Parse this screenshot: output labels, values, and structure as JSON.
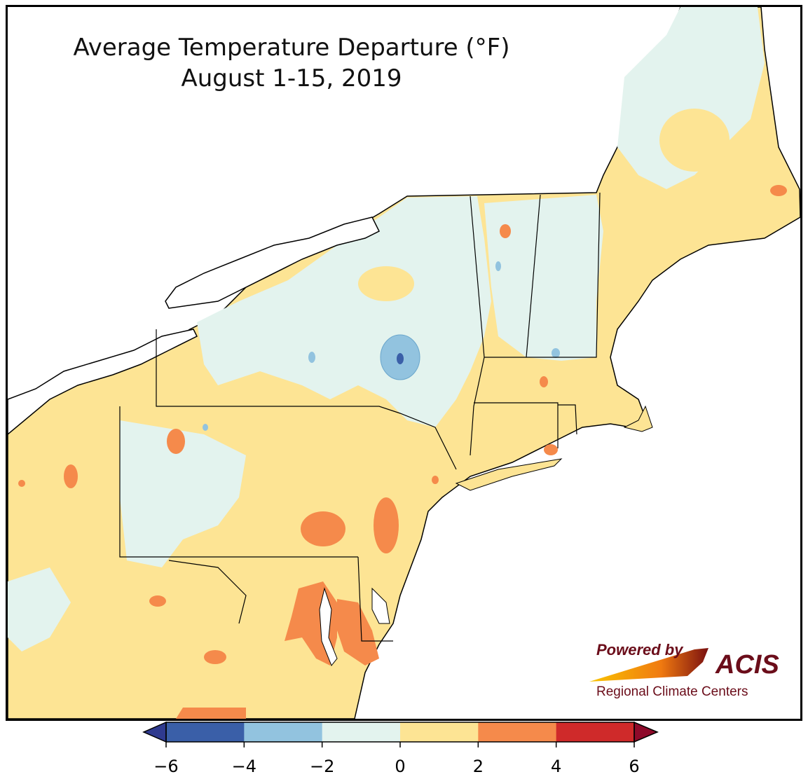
{
  "title": {
    "line1": "Average Temperature Departure (°F)",
    "line2": "August 1-15, 2019"
  },
  "legend": {
    "ticks": [
      "−6",
      "−4",
      "−2",
      "0",
      "2",
      "4",
      "6"
    ],
    "colors": [
      "#3a5fa8",
      "#92c3df",
      "#e3f3ee",
      "#fde494",
      "#f58a4b",
      "#cf2a2a"
    ],
    "under_color": "#2f3a8f",
    "over_color": "#8e0a2a"
  },
  "logo": {
    "powered_by": "Powered by",
    "acis": "ACIS",
    "rcc": "Regional Climate Centers"
  },
  "palette": {
    "water": "#ffffff",
    "near_normal": "#e3f3ee",
    "warm": "#fde494",
    "warmer": "#f58a4b",
    "cool": "#92c3df",
    "cooler": "#3a5fa8"
  }
}
